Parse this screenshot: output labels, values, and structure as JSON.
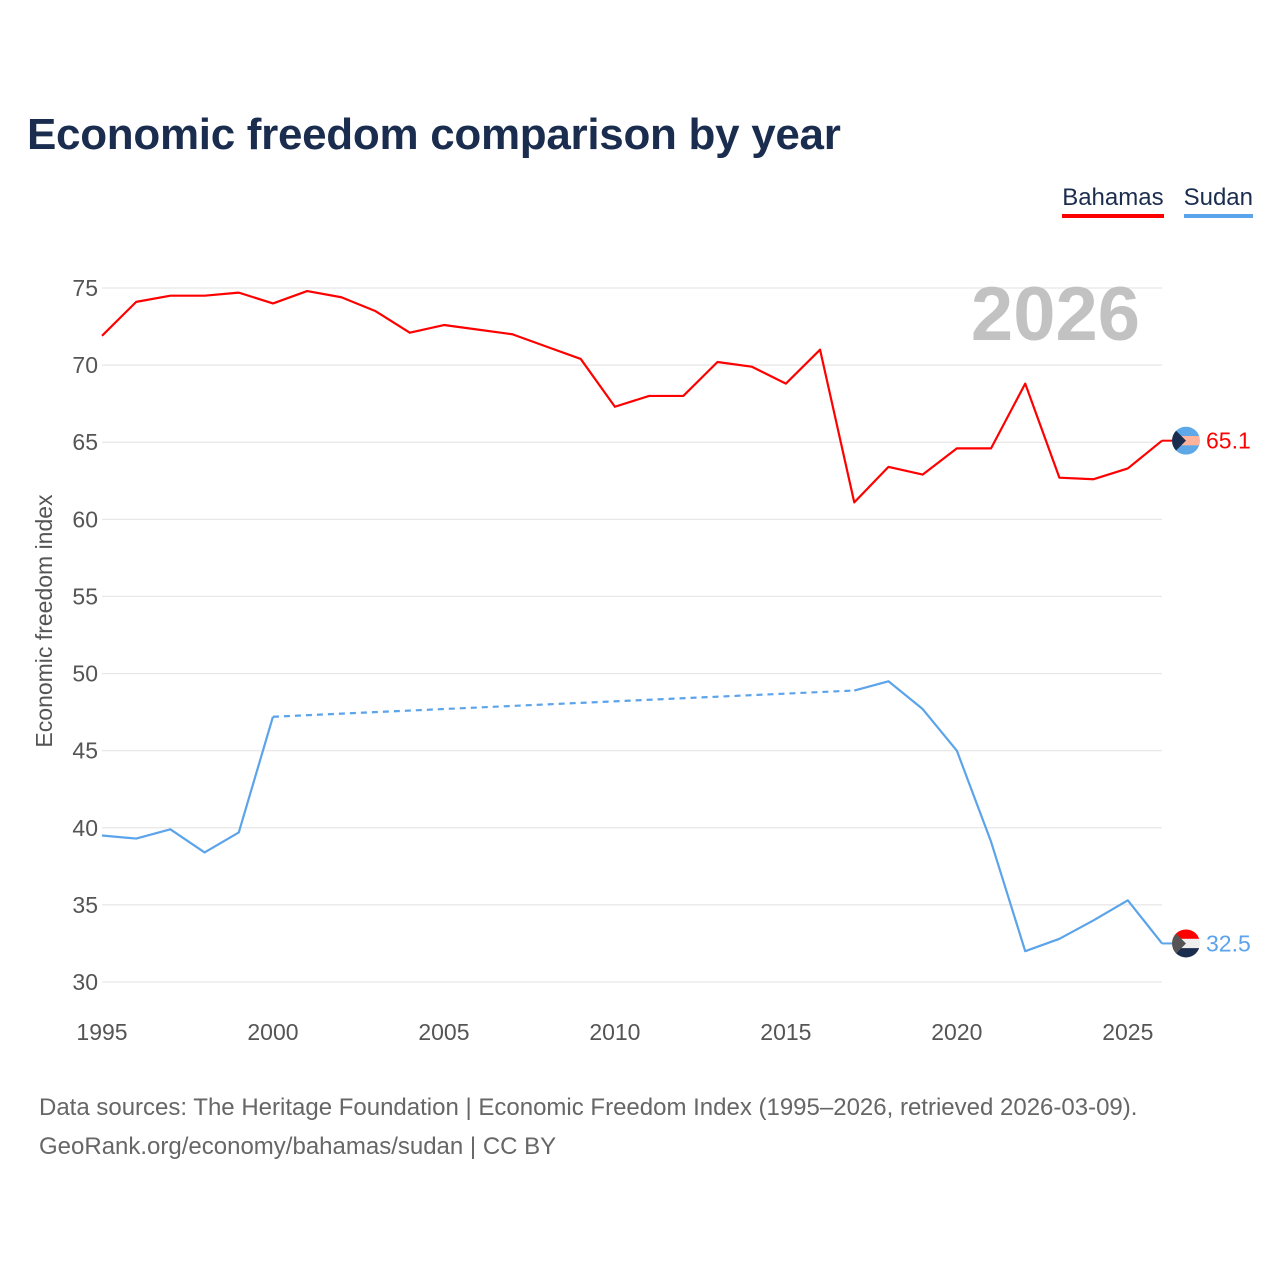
{
  "chart_data": {
    "type": "line",
    "title": "Economic freedom comparison by year",
    "xlabel": "",
    "ylabel": "Economic freedom index",
    "xlim": [
      1995,
      2026
    ],
    "ylim": [
      30,
      75
    ],
    "yticks": [
      30,
      35,
      40,
      45,
      50,
      55,
      60,
      65,
      70,
      75
    ],
    "xticks": [
      1995,
      2000,
      2005,
      2010,
      2015,
      2020,
      2025
    ],
    "grid": true,
    "legend_position": "top-right",
    "year_watermark": "2026",
    "x": [
      1995,
      1996,
      1997,
      1998,
      1999,
      2000,
      2001,
      2002,
      2003,
      2004,
      2005,
      2006,
      2007,
      2008,
      2009,
      2010,
      2011,
      2012,
      2013,
      2014,
      2015,
      2016,
      2017,
      2018,
      2019,
      2020,
      2021,
      2022,
      2023,
      2024,
      2025,
      2026
    ],
    "series": [
      {
        "name": "Bahamas",
        "color": "#ff0000",
        "end_label": "65.1",
        "flag": [
          "#5fa8e8",
          "#ffb39a",
          "#5fa8e8",
          "#1b2d4f"
        ],
        "values": [
          71.9,
          74.1,
          74.5,
          74.5,
          74.7,
          74.0,
          74.8,
          74.4,
          73.5,
          72.1,
          72.6,
          72.3,
          72.0,
          71.2,
          70.4,
          67.3,
          68.0,
          68.0,
          70.2,
          69.9,
          68.8,
          71.0,
          61.1,
          63.4,
          62.9,
          64.6,
          64.6,
          68.8,
          62.7,
          62.6,
          63.3,
          65.1
        ]
      },
      {
        "name": "Sudan",
        "color": "#5ba3ea",
        "end_label": "32.5",
        "flag": [
          "#ff0000",
          "#eeeeee",
          "#1b2d4f",
          "#555555"
        ],
        "values": [
          39.5,
          39.3,
          39.9,
          38.4,
          39.7,
          47.2,
          null,
          null,
          null,
          null,
          null,
          null,
          null,
          null,
          null,
          null,
          null,
          null,
          null,
          null,
          null,
          null,
          48.9,
          49.5,
          47.7,
          45.0,
          39.1,
          32.0,
          32.8,
          34.0,
          35.3,
          32.5
        ]
      }
    ]
  },
  "source": {
    "line1": "Data sources: The Heritage Foundation | Economic Freedom Index (1995–2026, retrieved 2026-03-09).",
    "line2": "GeoRank.org/economy/bahamas/sudan | CC BY"
  }
}
